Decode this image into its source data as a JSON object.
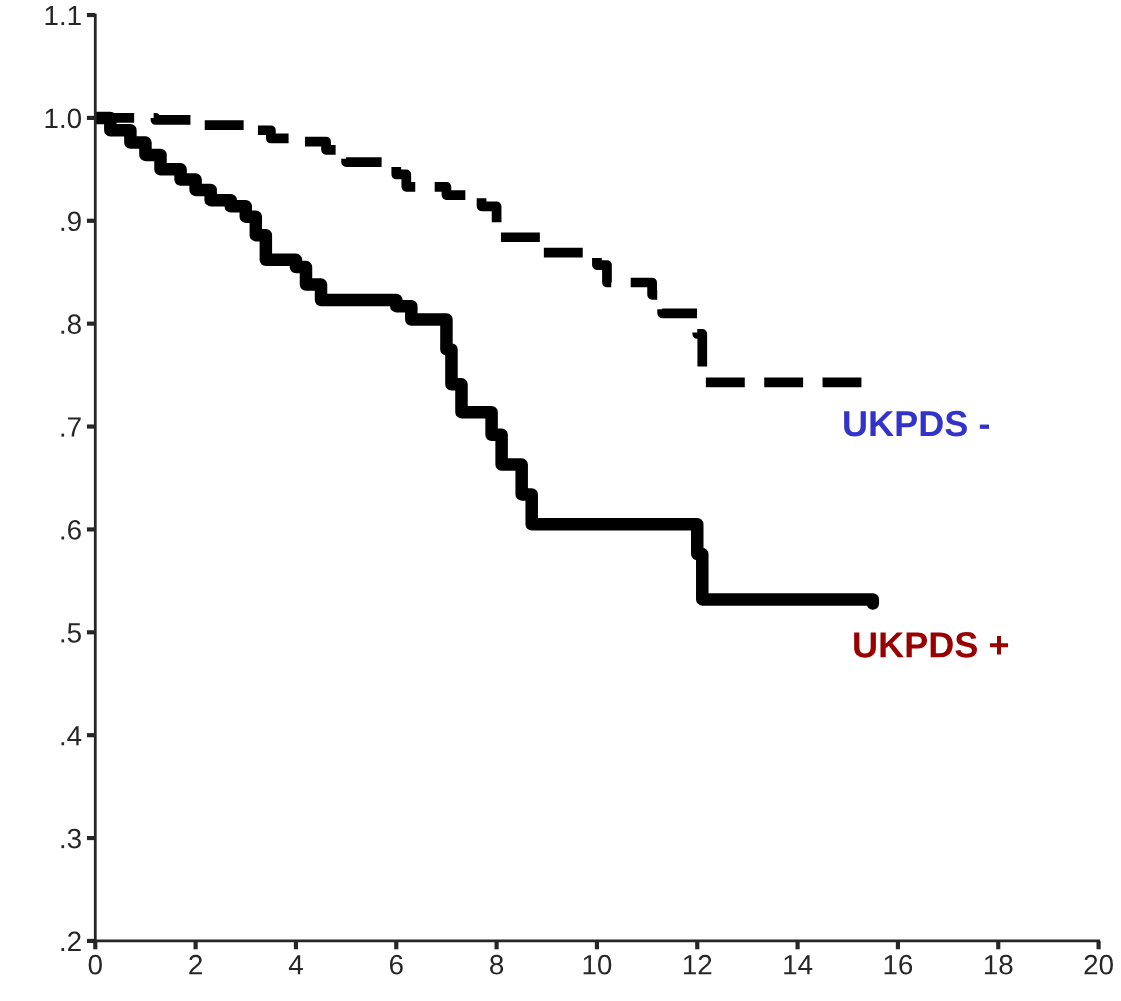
{
  "chart_data": {
    "type": "step",
    "xlim": [
      0,
      20
    ],
    "xticks": [
      0,
      2,
      4,
      6,
      8,
      10,
      12,
      14,
      16,
      18,
      20
    ],
    "ylim": [
      0.2,
      1.1
    ],
    "yticks": [
      {
        "value": 0.2,
        "label": ".2"
      },
      {
        "value": 0.3,
        "label": ".3"
      },
      {
        "value": 0.4,
        "label": ".4"
      },
      {
        "value": 0.5,
        "label": ".5"
      },
      {
        "value": 0.6,
        "label": ".6"
      },
      {
        "value": 0.7,
        "label": ".7"
      },
      {
        "value": 0.8,
        "label": ".8"
      },
      {
        "value": 0.9,
        "label": ".9"
      },
      {
        "value": 1.0,
        "label": "1.0"
      },
      {
        "value": 1.1,
        "label": "1.1"
      }
    ],
    "series": [
      {
        "name": "UKPDS -",
        "color": "#000000",
        "line_style": "dashed",
        "x": [
          0,
          1.2,
          2,
          3,
          3.5,
          4,
          4.6,
          5,
          6,
          6.2,
          7,
          7.7,
          8,
          8.9,
          10,
          10.2,
          11.1,
          11.3,
          12,
          12.1,
          15.3
        ],
        "values": [
          1.0,
          0.998,
          0.993,
          0.988,
          0.98,
          0.977,
          0.969,
          0.957,
          0.945,
          0.933,
          0.925,
          0.914,
          0.884,
          0.869,
          0.857,
          0.84,
          0.828,
          0.81,
          0.79,
          0.743,
          0.743
        ]
      },
      {
        "name": "UKPDS +",
        "color": "#000000",
        "line_style": "solid",
        "x": [
          0,
          0.3,
          0.7,
          1,
          1.3,
          1.7,
          2,
          2.3,
          2.7,
          3,
          3.2,
          3.4,
          4,
          4.2,
          4.5,
          6,
          6.3,
          7,
          7.1,
          7.3,
          7.9,
          8.1,
          8.5,
          8.7,
          12,
          12.1,
          15.5
        ],
        "values": [
          1.0,
          0.988,
          0.976,
          0.964,
          0.95,
          0.94,
          0.93,
          0.92,
          0.914,
          0.904,
          0.886,
          0.862,
          0.855,
          0.838,
          0.823,
          0.817,
          0.804,
          0.775,
          0.741,
          0.714,
          0.692,
          0.663,
          0.634,
          0.605,
          0.576,
          0.532,
          0.528
        ]
      }
    ]
  }
}
